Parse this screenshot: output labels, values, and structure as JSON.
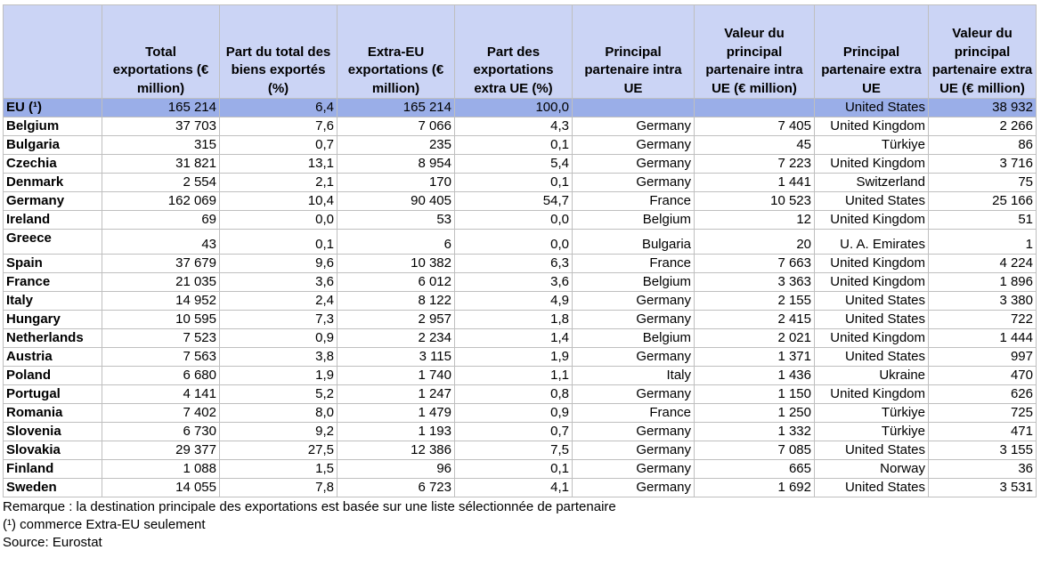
{
  "chart_data": {
    "type": "table",
    "columns": [
      "",
      "Total exportations (€ million)",
      "Part du total des biens exportés (%)",
      "Extra-EU exportations (€ million)",
      "Part des exportations extra UE (%)",
      "Principal partenaire intra UE",
      "Valeur du principal partenaire intra UE (€ million)",
      "Principal partenaire extra UE",
      "Valeur du principal partenaire extra UE (€ million)"
    ],
    "rows": [
      [
        "EU (¹)",
        "165 214",
        "6,4",
        "165 214",
        "100,0",
        "",
        "",
        "United States",
        "38 932"
      ],
      [
        "Belgium",
        "37 703",
        "7,6",
        "7 066",
        "4,3",
        "Germany",
        "7 405",
        "United Kingdom",
        "2 266"
      ],
      [
        "Bulgaria",
        "315",
        "0,7",
        "235",
        "0,1",
        "Germany",
        "45",
        "Türkiye",
        "86"
      ],
      [
        "Czechia",
        "31 821",
        "13,1",
        "8 954",
        "5,4",
        "Germany",
        "7 223",
        "United Kingdom",
        "3 716"
      ],
      [
        "Denmark",
        "2 554",
        "2,1",
        "170",
        "0,1",
        "Germany",
        "1 441",
        "Switzerland",
        "75"
      ],
      [
        "Germany",
        "162 069",
        "10,4",
        "90 405",
        "54,7",
        "France",
        "10 523",
        "United States",
        "25 166"
      ],
      [
        "Ireland",
        "69",
        "0,0",
        "53",
        "0,0",
        "Belgium",
        "12",
        "United Kingdom",
        "51"
      ],
      [
        "Greece",
        "43",
        "0,1",
        "6",
        "0,0",
        "Bulgaria",
        "20",
        "U. A. Emirates",
        "1"
      ],
      [
        "Spain",
        "37 679",
        "9,6",
        "10 382",
        "6,3",
        "France",
        "7 663",
        "United Kingdom",
        "4 224"
      ],
      [
        "France",
        "21 035",
        "3,6",
        "6 012",
        "3,6",
        "Belgium",
        "3 363",
        "United Kingdom",
        "1 896"
      ],
      [
        "Italy",
        "14 952",
        "2,4",
        "8 122",
        "4,9",
        "Germany",
        "2 155",
        "United States",
        "3 380"
      ],
      [
        "Hungary",
        "10 595",
        "7,3",
        "2 957",
        "1,8",
        "Germany",
        "2 415",
        "United States",
        "722"
      ],
      [
        "Netherlands",
        "7 523",
        "0,9",
        "2 234",
        "1,4",
        "Belgium",
        "2 021",
        "United Kingdom",
        "1 444"
      ],
      [
        "Austria",
        "7 563",
        "3,8",
        "3 115",
        "1,9",
        "Germany",
        "1 371",
        "United States",
        "997"
      ],
      [
        "Poland",
        "6 680",
        "1,9",
        "1 740",
        "1,1",
        "Italy",
        "1 436",
        "Ukraine",
        "470"
      ],
      [
        "Portugal",
        "4 141",
        "5,2",
        "1 247",
        "0,8",
        "Germany",
        "1 150",
        "United Kingdom",
        "626"
      ],
      [
        "Romania",
        "7 402",
        "8,0",
        "1 479",
        "0,9",
        "France",
        "1 250",
        "Türkiye",
        "725"
      ],
      [
        "Slovenia",
        "6 730",
        "9,2",
        "1 193",
        "0,7",
        "Germany",
        "1 332",
        "Türkiye",
        "471"
      ],
      [
        "Slovakia",
        "29 377",
        "27,5",
        "12 386",
        "7,5",
        "Germany",
        "7 085",
        "United States",
        "3 155"
      ],
      [
        "Finland",
        "1 088",
        "1,5",
        "96",
        "0,1",
        "Germany",
        "665",
        "Norway",
        "36"
      ],
      [
        "Sweden",
        "14 055",
        "7,8",
        "6 723",
        "4,1",
        "Germany",
        "1 692",
        "United States",
        "3 531"
      ]
    ]
  },
  "notes": {
    "remark": "Remarque : la destination principale des exportations est basée sur une liste sélectionnée de partenaire",
    "footnote": "(¹) commerce Extra-EU seulement",
    "source": "Source: Eurostat"
  },
  "colors": {
    "header_bg": "#cbd4f5",
    "eu_row_bg": "#9aaee8",
    "grid": "#bfbfbf"
  }
}
